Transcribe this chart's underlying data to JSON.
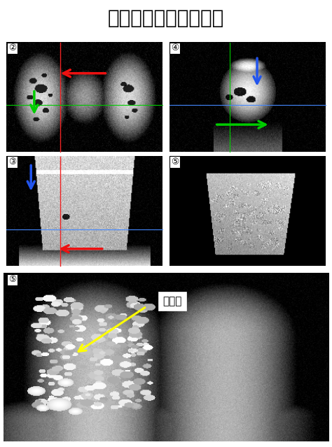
{
  "title": "》はんだフィレット》",
  "title_fontsize": 20,
  "bg_color": "#000000",
  "outer_bg": "#ffffff",
  "label1": "②",
  "label2": "③",
  "label3": "④",
  "label4_top": "⑤",
  "label4_bot": "⑤",
  "void_label": "ボイド",
  "arrow_red": "#ee1111",
  "arrow_green": "#00cc00",
  "arrow_blue": "#2255ee",
  "arrow_yellow": "#ffff00",
  "crosshair_red": "#ee2222",
  "crosshair_green": "#00cc00",
  "crosshair_blue": "#4488ff",
  "label_fontsize": 9,
  "void_fontsize": 11
}
